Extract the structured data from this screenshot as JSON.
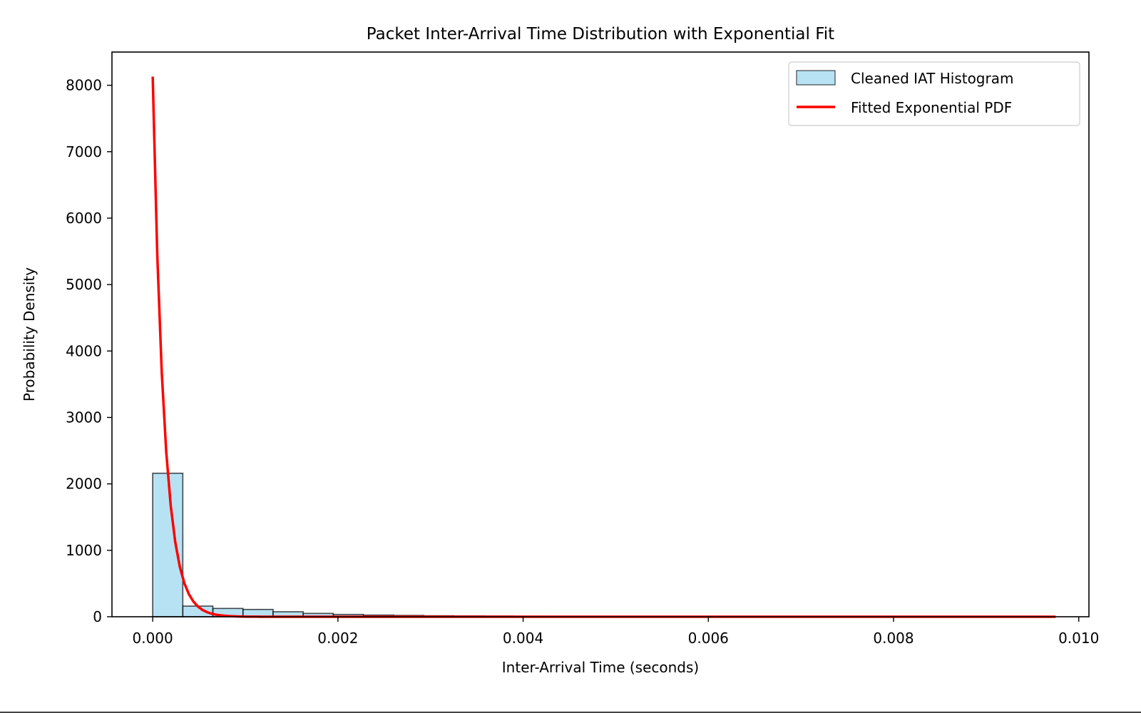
{
  "chart_data": {
    "type": "bar",
    "title": "Packet Inter-Arrival Time Distribution with Exponential Fit",
    "xlabel": "Inter-Arrival Time (seconds)",
    "ylabel": "Probability Density",
    "xlim": [
      -0.00044,
      0.01011
    ],
    "ylim": [
      0,
      8500
    ],
    "xticks": [
      0.0,
      0.002,
      0.004,
      0.006,
      0.008,
      0.01
    ],
    "xtick_labels": [
      "0.000",
      "0.002",
      "0.004",
      "0.006",
      "0.008",
      "0.010"
    ],
    "yticks": [
      0,
      1000,
      2000,
      3000,
      4000,
      5000,
      6000,
      7000,
      8000
    ],
    "ytick_labels": [
      "0",
      "1000",
      "2000",
      "3000",
      "4000",
      "5000",
      "6000",
      "7000",
      "8000"
    ],
    "grid": false,
    "legend_position": "top-right",
    "series": [
      {
        "name": "Cleaned IAT Histogram",
        "kind": "histogram",
        "fill": "#87ceeb",
        "edge": "#000000",
        "bin_width": 0.000325,
        "bin_start": 0.0,
        "values": [
          2160,
          160,
          125,
          110,
          75,
          50,
          35,
          25,
          20,
          15,
          12,
          10,
          8,
          6,
          4,
          0,
          0,
          0,
          0,
          0,
          0,
          0,
          0,
          0,
          0,
          0,
          0,
          0,
          0,
          0
        ]
      },
      {
        "name": "Fitted Exponential PDF",
        "kind": "line",
        "color": "#ff0000",
        "x_start": 0.0,
        "x_end": 0.00975,
        "rate": 8130,
        "y0": 8130
      }
    ]
  }
}
